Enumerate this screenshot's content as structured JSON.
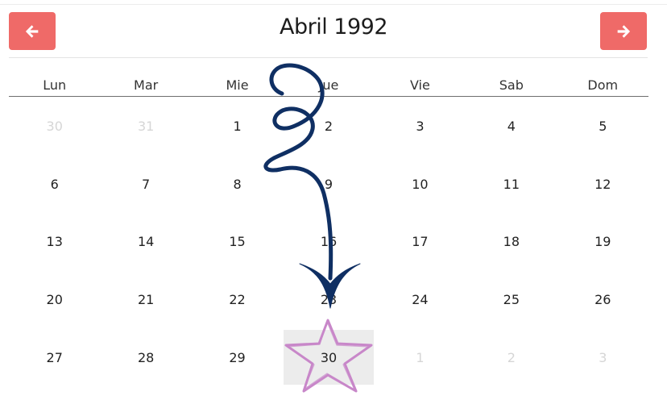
{
  "header": {
    "title": "Abril 1992",
    "prev_icon": "arrow-left-icon",
    "next_icon": "arrow-right-icon",
    "button_color": "#ef6a68"
  },
  "weekdays": [
    "Lun",
    "Mar",
    "Mie",
    "Jue",
    "Vie",
    "Sab",
    "Dom"
  ],
  "weeks": [
    [
      {
        "d": "30",
        "out": true
      },
      {
        "d": "31",
        "out": true
      },
      {
        "d": "1"
      },
      {
        "d": "2"
      },
      {
        "d": "3"
      },
      {
        "d": "4"
      },
      {
        "d": "5"
      }
    ],
    [
      {
        "d": "6"
      },
      {
        "d": "7"
      },
      {
        "d": "8"
      },
      {
        "d": "9"
      },
      {
        "d": "10"
      },
      {
        "d": "11"
      },
      {
        "d": "12"
      }
    ],
    [
      {
        "d": "13"
      },
      {
        "d": "14"
      },
      {
        "d": "15"
      },
      {
        "d": "16"
      },
      {
        "d": "17"
      },
      {
        "d": "18"
      },
      {
        "d": "19"
      }
    ],
    [
      {
        "d": "20"
      },
      {
        "d": "21"
      },
      {
        "d": "22"
      },
      {
        "d": "23"
      },
      {
        "d": "24"
      },
      {
        "d": "25"
      },
      {
        "d": "26"
      }
    ],
    [
      {
        "d": "27"
      },
      {
        "d": "28"
      },
      {
        "d": "29"
      },
      {
        "d": "30",
        "selected": true
      },
      {
        "d": "1",
        "out": true
      },
      {
        "d": "2",
        "out": true
      },
      {
        "d": "3",
        "out": true
      }
    ]
  ],
  "annotations": {
    "arrow_color": "#0f2f63",
    "star_color": "#c887c9",
    "arrow_icon": "curly-arrow-icon",
    "star_icon": "star-icon"
  }
}
